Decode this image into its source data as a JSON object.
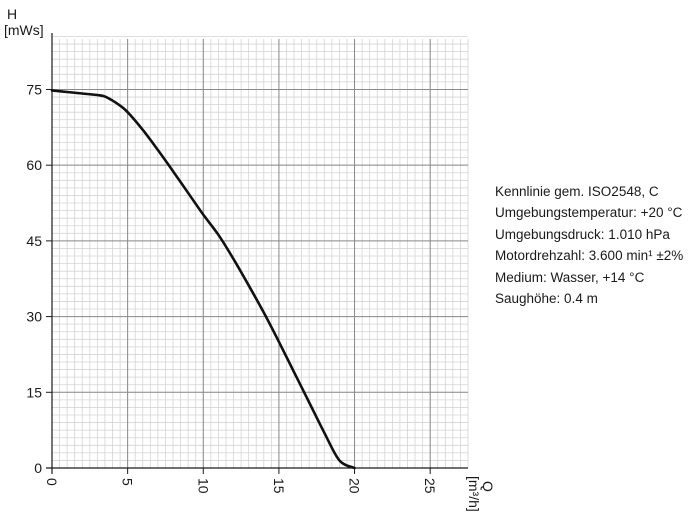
{
  "chart_data": {
    "type": "line",
    "title": "",
    "ylabel": "H",
    "ylabel_unit": "[mWs]",
    "xlabel": "Q",
    "xlabel_unit": "[m³/h]",
    "xlim": [
      0,
      27.5
    ],
    "ylim": [
      0,
      85
    ],
    "x_major_ticks": [
      0,
      5,
      10,
      15,
      20,
      25
    ],
    "x_tick_labels": [
      "0",
      "5",
      "10",
      "15",
      "20",
      "25"
    ],
    "y_major_ticks": [
      0,
      15,
      30,
      45,
      60,
      75
    ],
    "y_tick_labels": [
      "0",
      "15",
      "30",
      "45",
      "60",
      "75"
    ],
    "x_minor_step": 0.5,
    "y_minor_step": 1.5,
    "grid": true,
    "series": [
      {
        "color": "#111111",
        "x": [
          0,
          1,
          2,
          3,
          3.5,
          4,
          4.5,
          5,
          6,
          7,
          8,
          9,
          10,
          11,
          12,
          13,
          14,
          15,
          16,
          17,
          18,
          19,
          20
        ],
        "y": [
          74.8,
          74.5,
          74.2,
          73.9,
          73.6,
          72.8,
          71.8,
          70.5,
          67.0,
          63.0,
          58.8,
          54.5,
          50.2,
          46.2,
          41.4,
          36.2,
          30.8,
          25.0,
          19.0,
          13.0,
          7.0,
          1.5,
          0
        ]
      }
    ]
  },
  "notes": [
    "Kennlinie gem. ISO2548, C",
    "Umgebungstemperatur: +20 °C",
    "Umgebungsdruck: 1.010 hPa",
    "Motordrehzahl: 3.600 min¹ ±2%",
    "Medium: Wasser, +14 °C",
    "Saughöhe: 0.4 m"
  ]
}
